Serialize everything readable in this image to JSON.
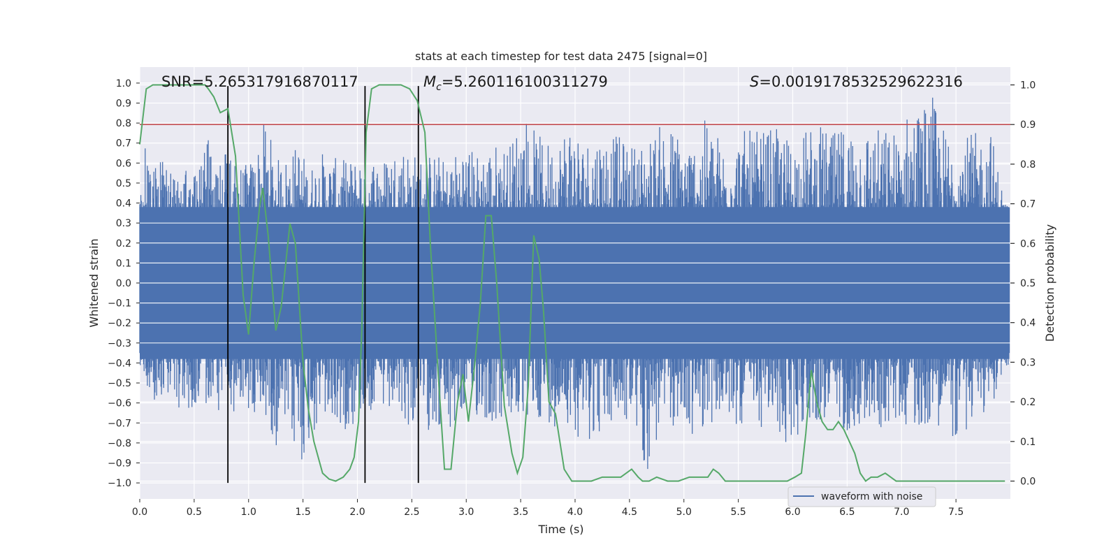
{
  "chart_data": {
    "type": "line",
    "title": "stats at each timestep for test data 2475 [signal=0]",
    "xlabel": "Time (s)",
    "ylabel_left": "Whitened strain",
    "ylabel_right": "Detection probability",
    "xlim": [
      0.0,
      8.0
    ],
    "ylim_left": [
      -1.08,
      1.08
    ],
    "ylim_right": [
      -0.045,
      1.045
    ],
    "x_ticks": [
      "0.0",
      "0.5",
      "1.0",
      "1.5",
      "2.0",
      "2.5",
      "3.0",
      "3.5",
      "4.0",
      "4.5",
      "5.0",
      "5.5",
      "6.0",
      "6.5",
      "7.0",
      "7.5"
    ],
    "x_tick_values": [
      0.0,
      0.5,
      1.0,
      1.5,
      2.0,
      2.5,
      3.0,
      3.5,
      4.0,
      4.5,
      5.0,
      5.5,
      6.0,
      6.5,
      7.0,
      7.5
    ],
    "y_left_ticks": [
      "1.0",
      "0.9",
      "0.8",
      "0.7",
      "0.6",
      "0.5",
      "0.4",
      "0.3",
      "0.2",
      "0.1",
      "0.0",
      "−0.1",
      "−0.2",
      "−0.3",
      "−0.4",
      "−0.5",
      "−0.6",
      "−0.7",
      "−0.8",
      "−0.9",
      "−1.0"
    ],
    "y_left_tick_values": [
      1.0,
      0.9,
      0.8,
      0.7,
      0.6,
      0.5,
      0.4,
      0.3,
      0.2,
      0.1,
      0.0,
      -0.1,
      -0.2,
      -0.3,
      -0.4,
      -0.5,
      -0.6,
      -0.7,
      -0.8,
      -0.9,
      -1.0
    ],
    "y_right_ticks": [
      "1.0",
      "0.9",
      "0.8",
      "0.7",
      "0.6",
      "0.5",
      "0.4",
      "0.3",
      "0.2",
      "0.1",
      "0.0"
    ],
    "y_right_tick_values": [
      1.0,
      0.9,
      0.8,
      0.7,
      0.6,
      0.5,
      0.4,
      0.3,
      0.2,
      0.1,
      0.0
    ],
    "grid": true,
    "legend_position": "lower-right",
    "annotations": {
      "snr": "SNR=5.265317916870117",
      "mc_symbol": "M",
      "mc_subscript": "c",
      "mc_value": "=5.260116100311279",
      "s_symbol": "S",
      "s_value": "=0.0019178532529622316"
    },
    "threshold_line": {
      "y_right": 0.9,
      "color": "#c44e52"
    },
    "vertical_lines_x": [
      0.81,
      2.07,
      2.56
    ],
    "colors": {
      "waveform": "#4c72b0",
      "probability": "#55a868",
      "vlines": "#000000",
      "background": "#eaeaf2",
      "grid": "#ffffff"
    },
    "series": [
      {
        "name": "waveform with noise",
        "axis": "left",
        "description_envelope_sample_count": 1600,
        "envelope": {
          "x": [
            0.0,
            0.05,
            0.12,
            0.2,
            0.3,
            0.42,
            0.55,
            0.63,
            0.68,
            0.81,
            0.95,
            1.05,
            1.16,
            1.25,
            1.38,
            1.46,
            1.55,
            1.68,
            1.82,
            1.96,
            2.07,
            2.22,
            2.4,
            2.56,
            2.73,
            2.82,
            2.97,
            3.1,
            3.25,
            3.4,
            3.52,
            3.66,
            3.82,
            3.96,
            4.07,
            4.22,
            4.38,
            4.52,
            4.66,
            4.82,
            4.97,
            5.08,
            5.22,
            5.38,
            5.52,
            5.66,
            5.81,
            5.97,
            6.08,
            6.22,
            6.38,
            6.52,
            6.66,
            6.82,
            6.97,
            7.08,
            7.22,
            7.26,
            7.38,
            7.52,
            7.66,
            7.82,
            7.95
          ],
          "upper": [
            0.42,
            0.7,
            0.61,
            0.68,
            0.55,
            0.58,
            0.62,
            0.72,
            0.6,
            0.72,
            0.58,
            0.64,
            0.84,
            0.62,
            0.65,
            0.72,
            0.58,
            0.66,
            0.62,
            0.62,
            0.68,
            0.62,
            0.72,
            0.64,
            0.66,
            0.6,
            0.72,
            0.66,
            0.71,
            0.7,
            0.89,
            0.74,
            0.7,
            0.88,
            0.72,
            0.78,
            0.74,
            0.7,
            0.72,
            0.82,
            0.76,
            0.72,
            0.84,
            0.7,
            0.77,
            0.76,
            0.78,
            0.74,
            0.76,
            0.8,
            0.75,
            0.82,
            0.8,
            0.78,
            0.77,
            0.9,
            0.92,
            0.98,
            0.79,
            0.74,
            0.75,
            0.78,
            0.4
          ],
          "lower": [
            -0.42,
            -0.48,
            -0.62,
            -0.58,
            -0.6,
            -0.66,
            -0.6,
            -0.62,
            -0.64,
            -0.72,
            -0.58,
            -0.8,
            -0.68,
            -0.82,
            -0.78,
            -0.98,
            -0.82,
            -0.7,
            -0.76,
            -0.72,
            -0.64,
            -0.68,
            -0.7,
            -0.76,
            -0.72,
            -0.84,
            -0.66,
            -0.68,
            -0.72,
            -0.7,
            -0.72,
            -0.68,
            -0.72,
            -0.7,
            -0.82,
            -0.76,
            -0.72,
            -0.7,
            -0.98,
            -0.72,
            -0.74,
            -0.78,
            -0.7,
            -0.72,
            -0.72,
            -0.74,
            -0.72,
            -0.88,
            -0.72,
            -0.7,
            -0.74,
            -0.74,
            -0.72,
            -0.74,
            -0.7,
            -0.72,
            -0.74,
            -0.7,
            -0.72,
            -0.82,
            -0.7,
            -0.64,
            -0.42
          ]
        }
      },
      {
        "name": "",
        "axis": "right",
        "x": [
          0.0,
          0.06,
          0.12,
          0.2,
          0.3,
          0.4,
          0.5,
          0.6,
          0.63,
          0.68,
          0.74,
          0.81,
          0.88,
          0.95,
          1.0,
          1.05,
          1.1,
          1.13,
          1.18,
          1.25,
          1.3,
          1.38,
          1.43,
          1.5,
          1.55,
          1.6,
          1.68,
          1.74,
          1.8,
          1.87,
          1.93,
          1.97,
          2.01,
          2.04,
          2.08,
          2.13,
          2.2,
          2.3,
          2.4,
          2.48,
          2.55,
          2.62,
          2.67,
          2.74,
          2.8,
          2.86,
          2.92,
          2.97,
          3.02,
          3.08,
          3.13,
          3.18,
          3.23,
          3.28,
          3.35,
          3.42,
          3.47,
          3.52,
          3.57,
          3.62,
          3.67,
          3.71,
          3.76,
          3.82,
          3.9,
          3.97,
          4.05,
          4.15,
          4.25,
          4.32,
          4.42,
          4.52,
          4.58,
          4.62,
          4.68,
          4.75,
          4.85,
          4.95,
          5.05,
          5.15,
          5.22,
          5.27,
          5.32,
          5.38,
          5.45,
          5.55,
          5.65,
          5.75,
          5.82,
          5.88,
          5.95,
          6.02,
          6.08,
          6.12,
          6.17,
          6.22,
          6.27,
          6.32,
          6.37,
          6.42,
          6.47,
          6.52,
          6.57,
          6.62,
          6.67,
          6.72,
          6.78,
          6.85,
          6.9,
          6.95,
          7.05,
          7.15,
          7.3,
          7.45,
          7.6,
          7.75,
          7.95
        ],
        "y": [
          0.85,
          0.99,
          1.0,
          1.0,
          1.0,
          1.0,
          1.0,
          1.0,
          0.99,
          0.97,
          0.93,
          0.94,
          0.82,
          0.47,
          0.37,
          0.55,
          0.69,
          0.74,
          0.62,
          0.38,
          0.44,
          0.65,
          0.6,
          0.3,
          0.18,
          0.1,
          0.02,
          0.005,
          0.0,
          0.01,
          0.03,
          0.06,
          0.15,
          0.38,
          0.88,
          0.99,
          1.0,
          1.0,
          1.0,
          0.99,
          0.96,
          0.88,
          0.6,
          0.28,
          0.03,
          0.03,
          0.2,
          0.27,
          0.15,
          0.3,
          0.45,
          0.67,
          0.67,
          0.5,
          0.19,
          0.07,
          0.02,
          0.06,
          0.24,
          0.62,
          0.56,
          0.43,
          0.2,
          0.17,
          0.03,
          0.0,
          0.0,
          0.0,
          0.01,
          0.01,
          0.01,
          0.03,
          0.01,
          0.0,
          0.0,
          0.01,
          0.0,
          0.0,
          0.01,
          0.01,
          0.01,
          0.03,
          0.02,
          0.0,
          0.0,
          0.0,
          0.0,
          0.0,
          0.0,
          0.0,
          0.0,
          0.01,
          0.02,
          0.12,
          0.28,
          0.2,
          0.15,
          0.13,
          0.13,
          0.15,
          0.13,
          0.1,
          0.07,
          0.02,
          0.0,
          0.01,
          0.01,
          0.02,
          0.01,
          0.0,
          0.0,
          0.0,
          0.0,
          0.0,
          0.0,
          0.0,
          0.0
        ]
      }
    ]
  }
}
